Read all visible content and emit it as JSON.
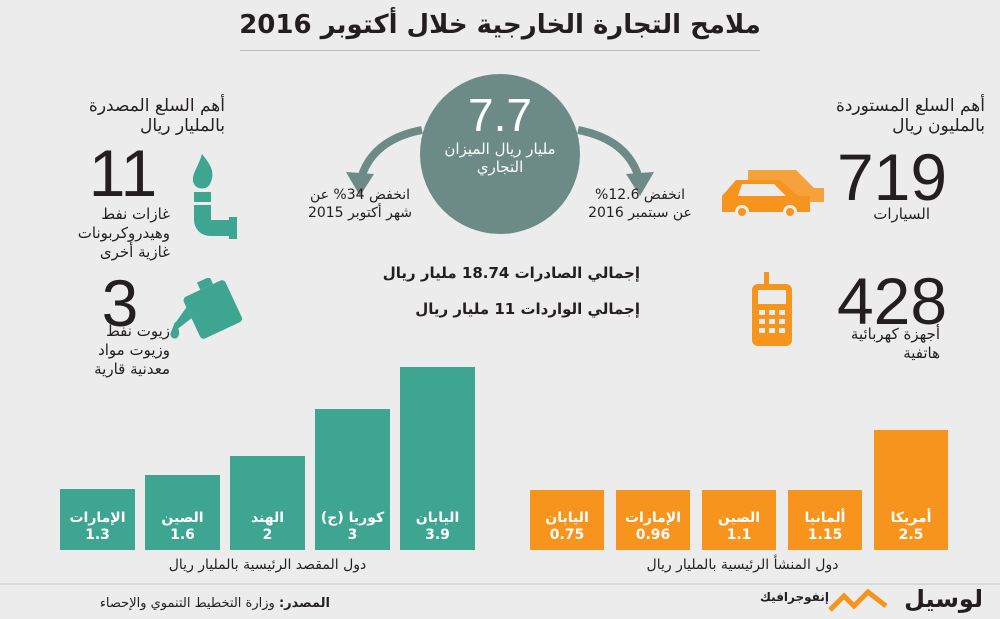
{
  "title": "ملامح التجارة الخارجية خلال أكتوبر 2016",
  "exports": {
    "heading_line1": "أهم السلع المصدرة",
    "heading_line2": "بالمليار ريال",
    "items": [
      {
        "value": "11",
        "label_lines": [
          "غازات نفط",
          "وهيدروكربونات",
          "غازية أخرى"
        ],
        "icon": "gas-torch-icon"
      },
      {
        "value": "3",
        "label_lines": [
          "زيوت نفط",
          "وزيوت مواد",
          "معدنية قارية"
        ],
        "icon": "oil-can-icon"
      }
    ]
  },
  "imports": {
    "heading_line1": "أهم السلع المستوردة",
    "heading_line2": "بالمليون ريال",
    "items": [
      {
        "value": "719",
        "label_lines": [
          "السيارات"
        ],
        "icon": "cars-icon"
      },
      {
        "value": "428",
        "label_lines": [
          "أجهزة كهربائية",
          "هاتفية"
        ],
        "icon": "phone-icon"
      }
    ]
  },
  "balance": {
    "value": "7.7",
    "label_line1": "مليار ريال  الميزان",
    "label_line2": "التجاري",
    "change_left_line1": "انخفض 34% عن",
    "change_left_line2": "شهر أكتوبر 2015",
    "change_right_line1": "انخفض 12.6%",
    "change_right_line2": "عن سبتمبر 2016"
  },
  "totals": {
    "exports": "إجمالي الصادرات 18.74 مليار ريال",
    "imports": "إجمالي الواردات 11 مليار ريال"
  },
  "chart_data": [
    {
      "type": "bar",
      "xlabel": "دول المقصد الرئيسية بالمليار ريال",
      "categories": [
        "الإمارات",
        "الصين",
        "الهند",
        "كوريا (ج)",
        "اليابان"
      ],
      "values": [
        1.3,
        1.6,
        2,
        3,
        3.9
      ],
      "value_labels": [
        "1.3",
        "1.6",
        "2",
        "3",
        "3.9"
      ],
      "color": "#3ea591"
    },
    {
      "type": "bar",
      "xlabel": "دول المنشأ الرئيسية بالمليار ريال",
      "categories": [
        "اليابان",
        "الإمارات",
        "الصين",
        "ألمانيا",
        "أمريكا"
      ],
      "values": [
        0.75,
        0.96,
        1.1,
        1.15,
        2.5
      ],
      "value_labels": [
        "0.75",
        "0.96",
        "1.1",
        "1.15",
        "2.5"
      ],
      "color": "#f7941d"
    }
  ],
  "footer": {
    "source_label": "المصدر:",
    "source_text": "وزارة التخطيط التنموي والإحصاء",
    "brand": "لوسيل",
    "brand_sub": "إنفوجرافيك"
  },
  "colors": {
    "teal": "#3ea591",
    "orange": "#f7941d",
    "circle": "#6d8b86"
  }
}
